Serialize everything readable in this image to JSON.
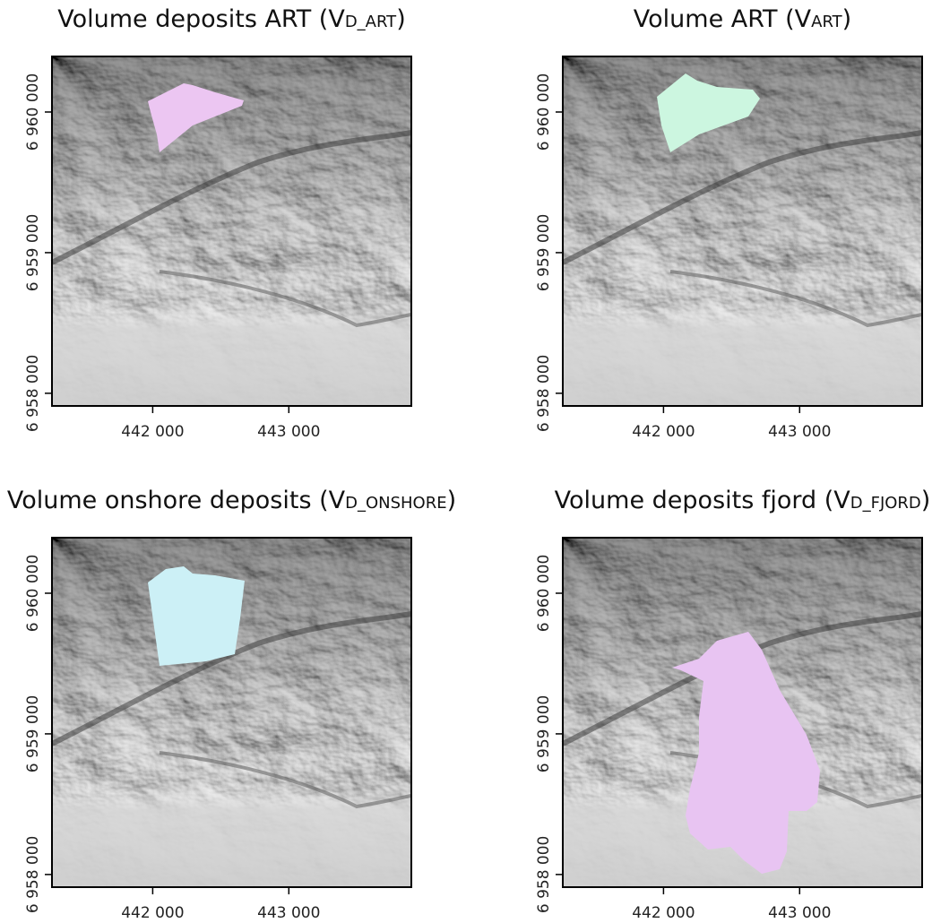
{
  "panels": [
    {
      "title": {
        "main": "Volume deposits ART (V",
        "subscript": "D_ART",
        "close": ")"
      },
      "xlim": [
        441260,
        443900
      ],
      "ylim": [
        6957910,
        6960395
      ],
      "xticks": [
        {
          "value": 442000,
          "label": "442 000"
        },
        {
          "value": 443000,
          "label": "443 000"
        }
      ],
      "yticks": [
        {
          "value": 6958000,
          "label": "6 958 000"
        },
        {
          "value": 6959000,
          "label": "6 959 000"
        },
        {
          "value": 6960000,
          "label": "6 960 000"
        }
      ],
      "area_color": "#ecc6f2"
    },
    {
      "title": {
        "main": "Volume ART (V",
        "subscript": "ART",
        "close": ")"
      },
      "xlim": [
        441260,
        443900
      ],
      "ylim": [
        6957910,
        6960395
      ],
      "xticks": [
        {
          "value": 442000,
          "label": "442 000"
        },
        {
          "value": 443000,
          "label": "443 000"
        }
      ],
      "yticks": [
        {
          "value": 6958000,
          "label": "6 958 000"
        },
        {
          "value": 6959000,
          "label": "6 959 000"
        },
        {
          "value": 6960000,
          "label": "6 960 000"
        }
      ],
      "area_color": "#ccf6e0"
    },
    {
      "title": {
        "main": "Volume onshore deposits (V",
        "subscript": "D_ONSHORE",
        "close": ")"
      },
      "xlim": [
        441260,
        443900
      ],
      "ylim": [
        6957910,
        6960395
      ],
      "xticks": [
        {
          "value": 442000,
          "label": "442 000"
        },
        {
          "value": 443000,
          "label": "443 000"
        }
      ],
      "yticks": [
        {
          "value": 6958000,
          "label": "6 958 000"
        },
        {
          "value": 6959000,
          "label": "6 959 000"
        },
        {
          "value": 6960000,
          "label": "6 960 000"
        }
      ],
      "area_color": "#ccf0f6"
    },
    {
      "title": {
        "main": "Volume deposits fjord (V",
        "subscript": "D_FJORD",
        "close": ")"
      },
      "xlim": [
        441260,
        443900
      ],
      "ylim": [
        6957910,
        6960395
      ],
      "xticks": [
        {
          "value": 442000,
          "label": "442 000"
        },
        {
          "value": 443000,
          "label": "443 000"
        }
      ],
      "yticks": [
        {
          "value": 6958000,
          "label": "6 958 000"
        },
        {
          "value": 6959000,
          "label": "6 959 000"
        },
        {
          "value": 6960000,
          "label": "6 960 000"
        }
      ],
      "area_color": "#e8c4f2"
    }
  ]
}
